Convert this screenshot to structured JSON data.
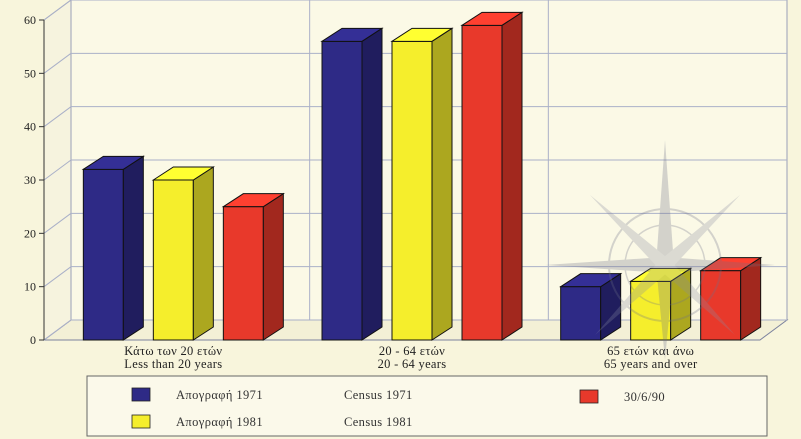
{
  "chart_data": {
    "type": "bar",
    "categories": [
      {
        "line1": "Κάτω των 20 ετών",
        "line2": "Less than 20 years"
      },
      {
        "line1": "20 - 64 ετών",
        "line2": "20 - 64 years"
      },
      {
        "line1": "65 ετών και άνω",
        "line2": "65 years and over"
      }
    ],
    "series": [
      {
        "label_gr": "Απογραφή 1971",
        "label_en": "Census 1971",
        "color": "#2e2a86",
        "values": [
          32,
          56,
          10
        ]
      },
      {
        "label_gr": "Απογραφή 1981",
        "label_en": "Census 1981",
        "color": "#f5ee2c",
        "values": [
          30,
          56,
          11
        ]
      },
      {
        "label_gr": "30/6/90",
        "label_en": "",
        "color": "#e8392b",
        "values": [
          25,
          59,
          13
        ]
      }
    ],
    "y_ticks": [
      "0",
      "10",
      "20",
      "30",
      "40",
      "50",
      "60"
    ],
    "ylim": [
      0,
      60
    ],
    "grid": true,
    "legend_position": "bottom"
  }
}
